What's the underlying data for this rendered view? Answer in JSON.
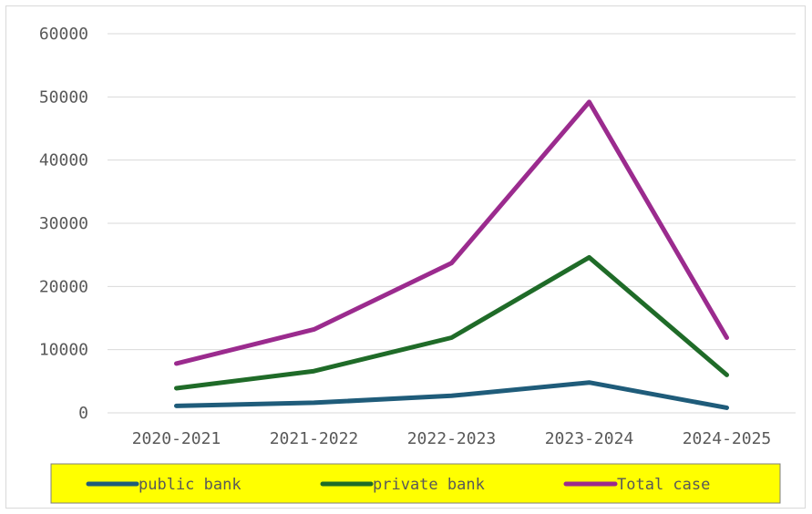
{
  "chart_data": {
    "type": "line",
    "categories": [
      "2020-2021",
      "2021-2022",
      "2022-2023",
      "2023-2024",
      "2024-2025"
    ],
    "series": [
      {
        "name": "public bank",
        "color": "#1f5c7a",
        "values": [
          1100,
          1600,
          2700,
          4800,
          800
        ]
      },
      {
        "name": "private bank",
        "color": "#1f6b28",
        "values": [
          3900,
          6600,
          11900,
          24600,
          6000
        ]
      },
      {
        "name": "Total case",
        "color": "#9b2b8e",
        "values": [
          7800,
          13200,
          23700,
          49200,
          11900
        ]
      }
    ],
    "y_ticks": [
      "0",
      "10000",
      "20000",
      "30000",
      "40000",
      "50000",
      "60000"
    ],
    "ylim": [
      0,
      60000
    ],
    "grid": true,
    "legend": {
      "placement": "bottom",
      "background": "#ffff00"
    },
    "title": "",
    "xlabel": "",
    "ylabel": ""
  }
}
